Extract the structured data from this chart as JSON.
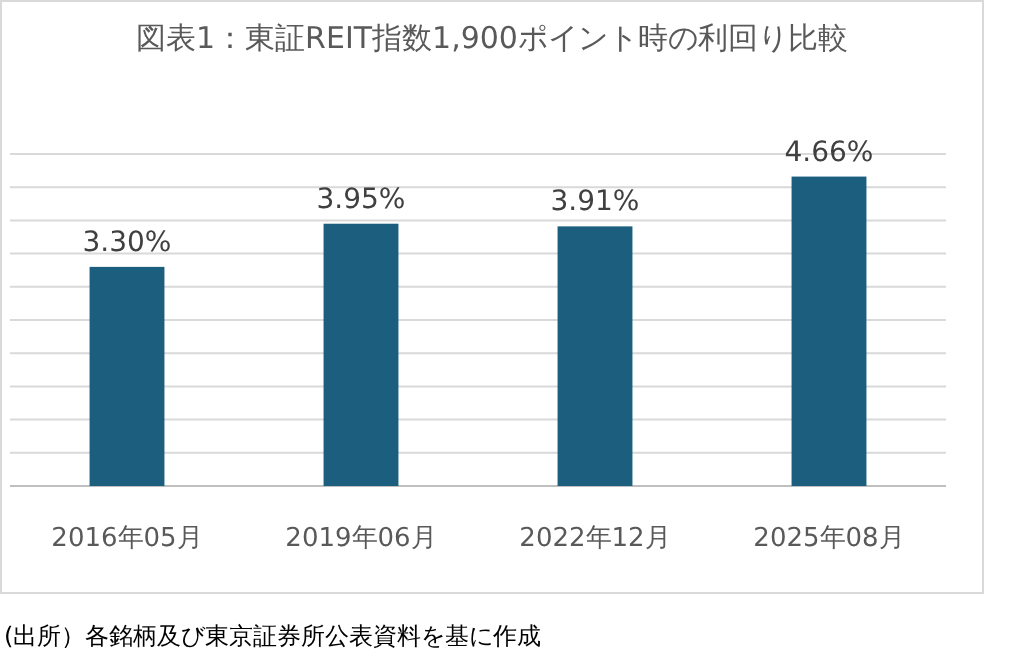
{
  "chart_data": {
    "type": "bar",
    "title": "図表1：東証REIT指数1,900ポイント時の利回り比較",
    "categories": [
      "2016年05月",
      "2019年06月",
      "2022年12月",
      "2025年08月"
    ],
    "values": [
      3.3,
      3.95,
      3.91,
      4.66
    ],
    "value_labels": [
      "3.30%",
      "3.95%",
      "3.91%",
      "4.66%"
    ],
    "color": "#1b5e7e",
    "ylim": [
      0,
      5
    ],
    "yticks": [
      {
        "value": 0,
        "label": null
      },
      {
        "value": 0.5,
        "label": null
      },
      {
        "value": 1,
        "label": null
      },
      {
        "value": 1.5,
        "label": null
      },
      {
        "value": 2,
        "label": null
      },
      {
        "value": 2.5,
        "label": null
      },
      {
        "value": 3,
        "label": null
      },
      {
        "value": 3.5,
        "label": null
      },
      {
        "value": 4,
        "label": null
      },
      {
        "value": 4.5,
        "label": null
      },
      {
        "value": 5,
        "label": null
      }
    ],
    "tick_labels": "x",
    "grid": "y",
    "annotations": [
      "(出所）各銘柄及び東京証券所公表資料を基に作成"
    ]
  }
}
